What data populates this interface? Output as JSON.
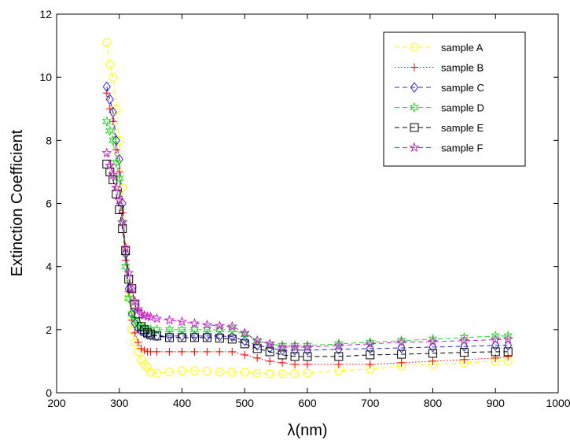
{
  "chart_data": {
    "type": "line",
    "xlabel": "λ(nm)",
    "ylabel": "Extinction Coefficient",
    "xlim": [
      200,
      1000
    ],
    "ylim": [
      0,
      12
    ],
    "xticks": [
      200,
      300,
      400,
      500,
      600,
      700,
      800,
      900,
      1000
    ],
    "yticks": [
      0,
      2,
      4,
      6,
      8,
      10,
      12
    ],
    "grid": false,
    "legend_position": "top-right",
    "series": [
      {
        "name": "sample A",
        "color": "#ffff00",
        "marker": "circle",
        "line": "dashed",
        "x": [
          280,
          285,
          290,
          295,
          300,
          305,
          310,
          315,
          320,
          325,
          330,
          335,
          340,
          345,
          350,
          360,
          380,
          400,
          420,
          440,
          460,
          480,
          500,
          520,
          540,
          560,
          580,
          600,
          650,
          700,
          750,
          800,
          850,
          900,
          920
        ],
        "y": [
          11.1,
          10.4,
          10.0,
          9.0,
          8.0,
          6.5,
          4.6,
          3.0,
          2.0,
          1.6,
          1.3,
          1.05,
          0.9,
          0.8,
          0.65,
          0.62,
          0.66,
          0.7,
          0.7,
          0.68,
          0.66,
          0.65,
          0.65,
          0.62,
          0.6,
          0.6,
          0.6,
          0.62,
          0.7,
          0.75,
          0.85,
          0.9,
          0.95,
          1.0,
          1.0
        ]
      },
      {
        "name": "sample B",
        "color": "#ff0000",
        "marker": "plus",
        "line": "dotted",
        "x": [
          280,
          285,
          290,
          295,
          300,
          305,
          310,
          315,
          320,
          325,
          330,
          335,
          340,
          345,
          350,
          360,
          380,
          400,
          420,
          440,
          460,
          480,
          500,
          520,
          540,
          560,
          580,
          600,
          650,
          700,
          750,
          800,
          850,
          900,
          920
        ],
        "y": [
          9.5,
          9.0,
          8.6,
          7.7,
          7.0,
          5.7,
          4.2,
          3.2,
          2.3,
          1.9,
          1.6,
          1.4,
          1.35,
          1.3,
          1.3,
          1.3,
          1.3,
          1.3,
          1.3,
          1.3,
          1.3,
          1.3,
          1.2,
          1.1,
          1.0,
          0.95,
          0.9,
          0.9,
          0.9,
          0.9,
          0.95,
          1.0,
          1.05,
          1.1,
          1.15
        ]
      },
      {
        "name": "sample C",
        "color": "#2a2ad0",
        "marker": "diamond",
        "line": "dashed",
        "x": [
          280,
          285,
          290,
          295,
          300,
          305,
          310,
          315,
          320,
          325,
          330,
          335,
          340,
          345,
          350,
          360,
          380,
          400,
          420,
          440,
          460,
          480,
          500,
          520,
          540,
          560,
          580,
          600,
          650,
          700,
          750,
          800,
          850,
          900,
          920
        ],
        "y": [
          9.7,
          9.3,
          8.9,
          8.0,
          7.4,
          6.0,
          4.4,
          3.3,
          2.5,
          2.2,
          2.05,
          1.95,
          1.9,
          1.85,
          1.82,
          1.8,
          1.8,
          1.8,
          1.8,
          1.8,
          1.8,
          1.78,
          1.65,
          1.5,
          1.42,
          1.35,
          1.35,
          1.35,
          1.38,
          1.4,
          1.42,
          1.45,
          1.47,
          1.5,
          1.5
        ]
      },
      {
        "name": "sample D",
        "color": "#22dd22",
        "marker": "hexagram",
        "line": "dashed",
        "x": [
          280,
          285,
          290,
          295,
          300,
          305,
          310,
          315,
          320,
          325,
          330,
          335,
          340,
          345,
          350,
          360,
          380,
          400,
          420,
          440,
          460,
          480,
          500,
          520,
          540,
          560,
          580,
          600,
          650,
          700,
          750,
          800,
          850,
          900,
          920
        ],
        "y": [
          8.6,
          8.3,
          8.0,
          7.3,
          6.8,
          5.4,
          4.0,
          3.0,
          2.5,
          2.3,
          2.15,
          2.1,
          2.05,
          2.0,
          2.0,
          2.0,
          2.0,
          2.0,
          2.0,
          2.0,
          2.0,
          2.0,
          1.85,
          1.65,
          1.55,
          1.5,
          1.5,
          1.5,
          1.55,
          1.6,
          1.65,
          1.7,
          1.75,
          1.8,
          1.8
        ]
      },
      {
        "name": "sample E",
        "color": "#000000",
        "marker": "square",
        "line": "dashed",
        "x": [
          280,
          285,
          290,
          295,
          300,
          305,
          310,
          315,
          320,
          325,
          330,
          335,
          340,
          345,
          350,
          360,
          380,
          400,
          420,
          440,
          460,
          480,
          500,
          520,
          540,
          560,
          580,
          600,
          650,
          700,
          750,
          800,
          850,
          900,
          920
        ],
        "y": [
          7.25,
          7.0,
          6.75,
          6.3,
          5.8,
          5.2,
          4.5,
          3.6,
          3.3,
          2.8,
          2.5,
          2.1,
          2.0,
          1.9,
          1.85,
          1.8,
          1.75,
          1.75,
          1.75,
          1.75,
          1.73,
          1.7,
          1.55,
          1.4,
          1.3,
          1.2,
          1.15,
          1.15,
          1.15,
          1.2,
          1.22,
          1.25,
          1.28,
          1.3,
          1.3
        ]
      },
      {
        "name": "sample F",
        "color": "#cc22cc",
        "marker": "pentagram",
        "line": "dashed",
        "x": [
          280,
          285,
          290,
          295,
          300,
          305,
          310,
          315,
          320,
          325,
          330,
          335,
          340,
          345,
          350,
          360,
          380,
          400,
          420,
          440,
          460,
          480,
          500,
          520,
          540,
          560,
          580,
          600,
          650,
          700,
          750,
          800,
          850,
          900,
          920
        ],
        "y": [
          7.6,
          7.2,
          6.9,
          6.5,
          6.1,
          5.4,
          4.6,
          3.8,
          3.3,
          2.9,
          2.65,
          2.5,
          2.45,
          2.42,
          2.4,
          2.35,
          2.3,
          2.25,
          2.2,
          2.15,
          2.12,
          2.1,
          1.9,
          1.65,
          1.55,
          1.45,
          1.45,
          1.45,
          1.5,
          1.55,
          1.6,
          1.62,
          1.65,
          1.68,
          1.7
        ]
      }
    ]
  }
}
